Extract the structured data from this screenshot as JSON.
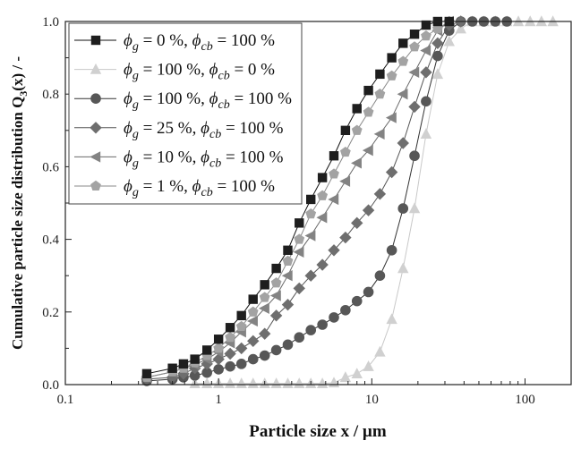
{
  "chart_data": {
    "type": "line",
    "xlabel": "Particle size x / µm",
    "ylabel_main": "Cumulative particle size distribution Q",
    "ylabel_sub": "3",
    "ylabel_tail": "(x) / -",
    "xscale": "log",
    "xlim": [
      0.1,
      200
    ],
    "ylim": [
      0.0,
      1.0
    ],
    "xticks": [
      0.1,
      1,
      10,
      100
    ],
    "xtick_labels": [
      "0.1",
      "1",
      "10",
      "100"
    ],
    "yticks": [
      0.0,
      0.2,
      0.4,
      0.6,
      0.8,
      1.0
    ],
    "ytick_labels": [
      "0.0",
      "0.2",
      "0.4",
      "0.6",
      "0.8",
      "1.0"
    ],
    "grid": false,
    "legend_position": "top-left",
    "legend_symbol": "ϕ",
    "x": [
      0.34,
      0.5,
      0.59,
      0.7,
      0.84,
      1.0,
      1.19,
      1.41,
      1.68,
      2.0,
      2.38,
      2.83,
      3.36,
      4.0,
      4.76,
      5.66,
      6.73,
      8.0,
      9.51,
      11.3,
      13.5,
      16.0,
      19.0,
      22.6,
      26.9,
      32.0,
      38.1,
      45.3,
      53.8,
      64.0,
      76.1,
      90.5,
      108,
      128,
      152
    ],
    "series": [
      {
        "name": {
          "g": "0 %",
          "cb": "100 %"
        },
        "marker": "square",
        "color": "#1e1e1e",
        "line": "#111111",
        "values": [
          0.03,
          0.045,
          0.057,
          0.07,
          0.095,
          0.125,
          0.157,
          0.19,
          0.235,
          0.275,
          0.32,
          0.37,
          0.445,
          0.51,
          0.57,
          0.63,
          0.7,
          0.76,
          0.81,
          0.855,
          0.9,
          0.94,
          0.965,
          0.99,
          1.0,
          1.0,
          null,
          null,
          null,
          null,
          null,
          null,
          null,
          null,
          null
        ]
      },
      {
        "name": {
          "g": "100 %",
          "cb": "0 %"
        },
        "marker": "triangle-up",
        "color": "#d0d0d0",
        "line": "#c8c8c8",
        "values": [
          null,
          null,
          null,
          0.003,
          0.003,
          0.003,
          0.003,
          0.003,
          0.003,
          0.003,
          0.003,
          0.003,
          0.003,
          0.003,
          0.003,
          0.005,
          0.02,
          0.03,
          0.05,
          0.09,
          0.18,
          0.32,
          0.485,
          0.69,
          0.855,
          0.945,
          0.98,
          1.0,
          1.0,
          1.0,
          1.0,
          1.0,
          1.0,
          1.0,
          1.0
        ]
      },
      {
        "name": {
          "g": "100 %",
          "cb": "100 %"
        },
        "marker": "circle",
        "color": "#575757",
        "line": "#333333",
        "values": [
          0.01,
          0.015,
          0.02,
          0.025,
          0.033,
          0.042,
          0.05,
          0.057,
          0.07,
          0.08,
          0.095,
          0.11,
          0.13,
          0.15,
          0.165,
          0.185,
          0.205,
          0.23,
          0.255,
          0.3,
          0.37,
          0.485,
          0.63,
          0.78,
          0.905,
          0.975,
          1.0,
          1.0,
          1.0,
          1.0,
          1.0,
          null,
          null,
          null,
          null
        ]
      },
      {
        "name": {
          "g": "25 %",
          "cb": "100 %"
        },
        "marker": "diamond",
        "color": "#6e6e6e",
        "line": "#555555",
        "values": [
          0.015,
          0.02,
          0.03,
          0.045,
          0.057,
          0.07,
          0.085,
          0.1,
          0.12,
          0.14,
          0.19,
          0.22,
          0.265,
          0.3,
          0.33,
          0.37,
          0.405,
          0.445,
          0.48,
          0.525,
          0.585,
          0.665,
          0.765,
          0.86,
          0.94,
          0.99,
          1.0,
          null,
          null,
          null,
          null,
          null,
          null,
          null,
          null
        ]
      },
      {
        "name": {
          "g": "10 %",
          "cb": "100 %"
        },
        "marker": "triangle-left",
        "color": "#838383",
        "line": "#6a6a6a",
        "values": [
          0.02,
          0.035,
          0.045,
          0.055,
          0.07,
          0.09,
          0.115,
          0.145,
          0.175,
          0.21,
          0.245,
          0.3,
          0.365,
          0.41,
          0.46,
          0.51,
          0.56,
          0.61,
          0.645,
          0.69,
          0.735,
          0.8,
          0.86,
          0.92,
          0.975,
          1.0,
          null,
          null,
          null,
          null,
          null,
          null,
          null,
          null,
          null
        ]
      },
      {
        "name": {
          "g": "1 %",
          "cb": "100 %"
        },
        "marker": "pentagon",
        "color": "#a3a3a3",
        "line": "#8a8a8a",
        "values": [
          0.02,
          0.035,
          0.045,
          0.06,
          0.08,
          0.1,
          0.13,
          0.16,
          0.2,
          0.24,
          0.28,
          0.34,
          0.4,
          0.47,
          0.52,
          0.58,
          0.64,
          0.7,
          0.75,
          0.8,
          0.85,
          0.89,
          0.93,
          0.96,
          0.98,
          1.0,
          null,
          null,
          null,
          null,
          null,
          null,
          null,
          null,
          null
        ]
      }
    ]
  }
}
